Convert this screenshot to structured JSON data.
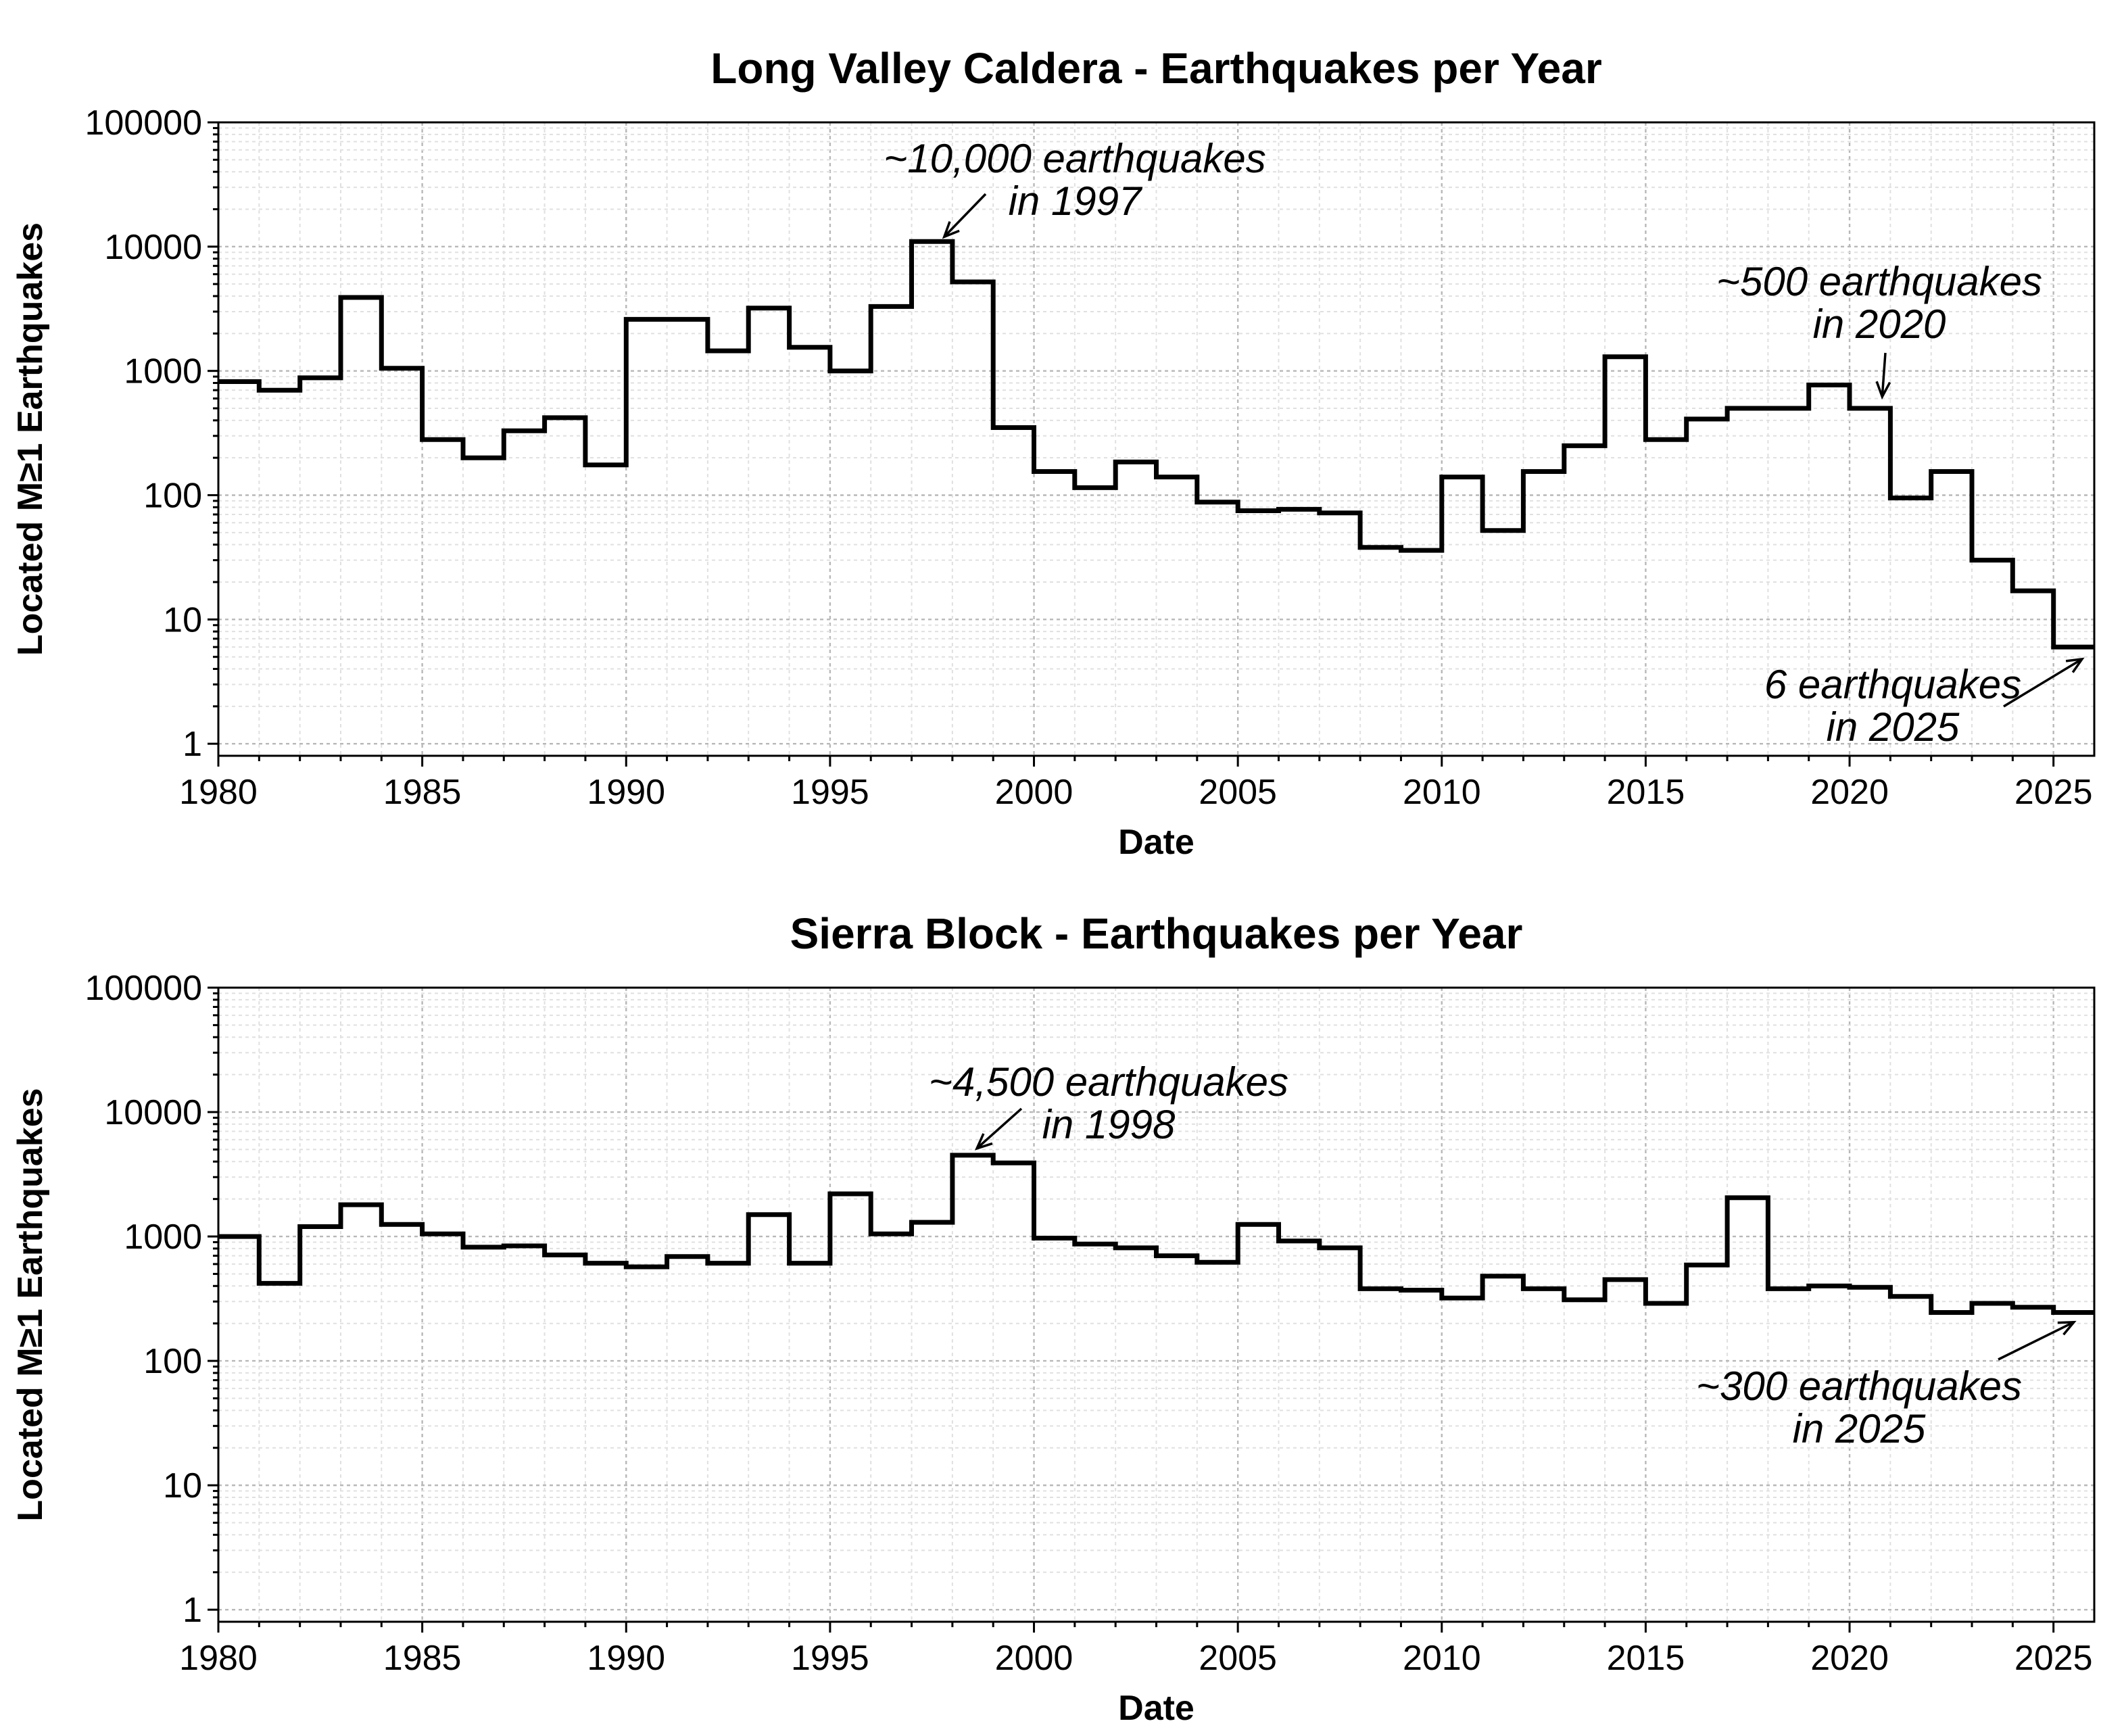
{
  "chart_data": [
    {
      "type": "line",
      "step": "post",
      "title": "Long Valley Caldera - Earthquakes per Year",
      "xlabel": "Date",
      "ylabel": "Located M≥1 Earthquakes",
      "yscale": "log",
      "grid": true,
      "xlim": [
        1980,
        2026
      ],
      "ylim": [
        0.8,
        100000
      ],
      "xticks": [
        "1980",
        "1985",
        "1990",
        "1995",
        "2000",
        "2005",
        "2010",
        "2015",
        "2020",
        "2025"
      ],
      "yticks": [
        "1",
        "10",
        "100",
        "1000",
        "10000",
        "100000"
      ],
      "x": [
        1980,
        1981,
        1982,
        1983,
        1984,
        1985,
        1986,
        1987,
        1988,
        1989,
        1990,
        1991,
        1992,
        1993,
        1994,
        1995,
        1996,
        1997,
        1998,
        1999,
        2000,
        2001,
        2002,
        2003,
        2004,
        2005,
        2006,
        2007,
        2008,
        2009,
        2010,
        2011,
        2012,
        2013,
        2014,
        2015,
        2016,
        2017,
        2018,
        2019,
        2020,
        2021,
        2022,
        2023,
        2024,
        2025
      ],
      "values": [
        820,
        700,
        880,
        3900,
        1050,
        280,
        200,
        330,
        420,
        175,
        2600,
        2600,
        1450,
        3200,
        1550,
        1000,
        3300,
        11000,
        5200,
        350,
        155,
        115,
        185,
        140,
        88,
        75,
        77,
        72,
        38,
        36,
        140,
        52,
        155,
        250,
        1300,
        280,
        410,
        500,
        500,
        770,
        500,
        95,
        155,
        30,
        17,
        6
      ],
      "annotations": [
        {
          "text": [
            "~10,000 earthquakes",
            "in 1997"
          ],
          "x": 1997.8,
          "y": 12000
        },
        {
          "text": [
            "~500 earthquakes",
            "in 2020"
          ],
          "x": 2020.8,
          "y": 620
        },
        {
          "text": [
            "6 earthquakes",
            "in 2025"
          ],
          "x": 2025.7,
          "y": 4.8
        }
      ]
    },
    {
      "type": "line",
      "step": "post",
      "title": "Sierra Block - Earthquakes per Year",
      "xlabel": "Date",
      "ylabel": "Located M≥1 Earthquakes",
      "yscale": "log",
      "grid": true,
      "xlim": [
        1980,
        2026
      ],
      "ylim": [
        0.8,
        100000
      ],
      "xticks": [
        "1980",
        "1985",
        "1990",
        "1995",
        "2000",
        "2005",
        "2010",
        "2015",
        "2020",
        "2025"
      ],
      "yticks": [
        "1",
        "10",
        "100",
        "1000",
        "10000",
        "100000"
      ],
      "x": [
        1980,
        1981,
        1982,
        1983,
        1984,
        1985,
        1986,
        1987,
        1988,
        1989,
        1990,
        1991,
        1992,
        1993,
        1994,
        1995,
        1996,
        1997,
        1998,
        1999,
        2000,
        2001,
        2002,
        2003,
        2004,
        2005,
        2006,
        2007,
        2008,
        2009,
        2010,
        2011,
        2012,
        2013,
        2014,
        2015,
        2016,
        2017,
        2018,
        2019,
        2020,
        2021,
        2022,
        2023,
        2024,
        2025
      ],
      "values": [
        1000,
        420,
        1200,
        1800,
        1250,
        1050,
        820,
        840,
        710,
        610,
        570,
        690,
        610,
        1500,
        610,
        2200,
        1050,
        1300,
        4500,
        3900,
        970,
        870,
        810,
        700,
        620,
        1250,
        920,
        810,
        380,
        370,
        320,
        480,
        380,
        310,
        450,
        290,
        590,
        2050,
        380,
        400,
        390,
        330,
        245,
        290,
        270,
        245
      ],
      "annotations": [
        {
          "text": [
            "~4,500 earthquakes",
            "in 1998"
          ],
          "x": 1998.6,
          "y": 5100
        },
        {
          "text": [
            "~300 earthquakes",
            "in 2025"
          ],
          "x": 2025.5,
          "y": 205
        }
      ]
    }
  ]
}
